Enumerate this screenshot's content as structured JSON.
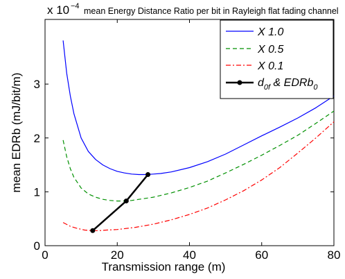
{
  "chart_data": {
    "type": "line",
    "title": "mean Energy Distance Ratio per bit in Rayleigh flat fading channel",
    "exponent_label": {
      "base": "x 10",
      "exponent": "−4"
    },
    "xlabel": "Transmission range (m)",
    "ylabel": "mean EDRb (mJ/bit/m)",
    "xlim": [
      0,
      80
    ],
    "ylim": [
      0,
      4.2
    ],
    "xticks": [
      0,
      20,
      40,
      60,
      80
    ],
    "yticks": [
      0,
      1,
      2,
      3
    ],
    "grid": false,
    "legend_position": "top-right",
    "series": [
      {
        "name": "X 1.0",
        "color": "#0000ff",
        "style": "solid",
        "x": [
          5,
          6,
          7,
          8,
          10,
          12,
          14,
          16,
          18,
          20,
          22,
          24,
          26,
          28,
          30,
          32,
          35,
          40,
          45,
          50,
          55,
          60,
          65,
          70,
          75,
          80
        ],
        "y": [
          3.81,
          3.2,
          2.78,
          2.45,
          2.0,
          1.75,
          1.6,
          1.5,
          1.43,
          1.38,
          1.35,
          1.33,
          1.32,
          1.32,
          1.33,
          1.34,
          1.37,
          1.45,
          1.56,
          1.7,
          1.87,
          2.04,
          2.2,
          2.37,
          2.56,
          2.78
        ]
      },
      {
        "name": "X 0.5",
        "color": "#009000",
        "style": "dashed",
        "x": [
          5,
          6,
          7,
          8,
          10,
          12,
          14,
          16,
          18,
          20,
          22,
          24,
          26,
          28,
          30,
          35,
          40,
          45,
          50,
          55,
          60,
          65,
          70,
          75,
          80
        ],
        "y": [
          1.96,
          1.65,
          1.43,
          1.27,
          1.07,
          0.96,
          0.9,
          0.86,
          0.84,
          0.83,
          0.83,
          0.84,
          0.86,
          0.88,
          0.9,
          0.98,
          1.08,
          1.2,
          1.35,
          1.51,
          1.68,
          1.86,
          2.05,
          2.27,
          2.5
        ]
      },
      {
        "name": "X 0.1",
        "color": "#ff0000",
        "style": "dashdot",
        "x": [
          5,
          7,
          9,
          11,
          13,
          15,
          17,
          20,
          25,
          30,
          35,
          40,
          45,
          50,
          55,
          60,
          65,
          70,
          75,
          80
        ],
        "y": [
          0.43,
          0.36,
          0.32,
          0.29,
          0.28,
          0.28,
          0.29,
          0.3,
          0.34,
          0.4,
          0.48,
          0.58,
          0.7,
          0.85,
          1.02,
          1.22,
          1.45,
          1.72,
          2.0,
          2.3
        ]
      },
      {
        "name": "d_0f & EDRb_0",
        "color": "#000000",
        "style": "solid-markers",
        "x": [
          13.2,
          22.5,
          28.5
        ],
        "y": [
          0.28,
          0.83,
          1.32
        ]
      }
    ]
  }
}
